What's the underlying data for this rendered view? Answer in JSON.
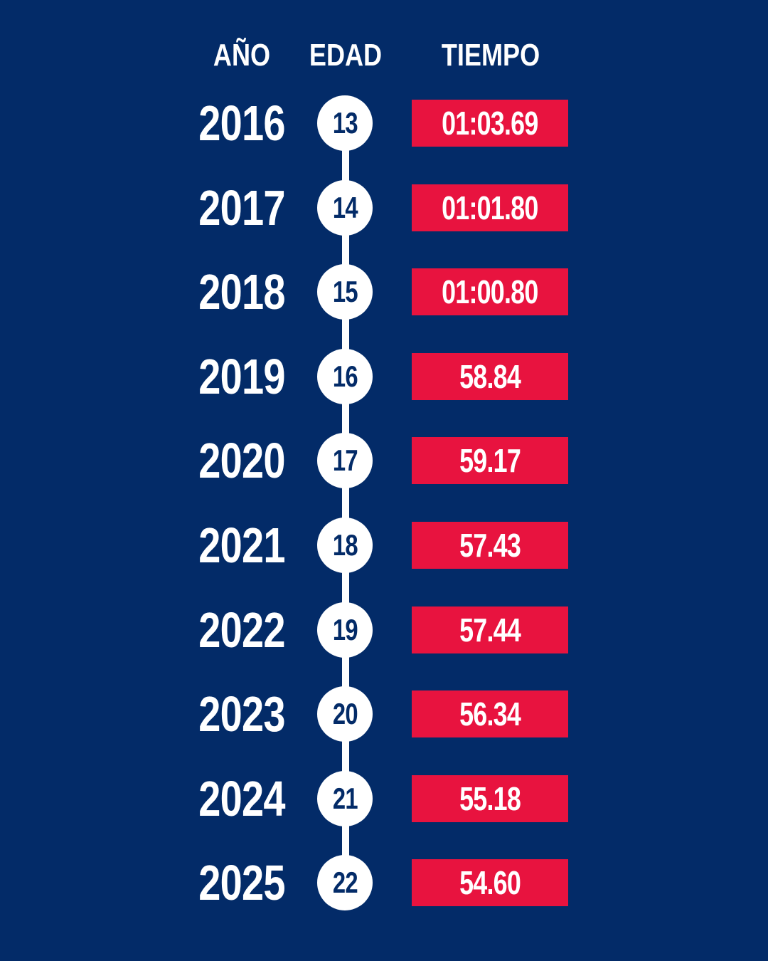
{
  "headers": {
    "year": "AÑO",
    "age": "EDAD",
    "time": "TIEMPO"
  },
  "colors": {
    "background": "#032B68",
    "time_box": "#E8133F",
    "text": "#ffffff"
  },
  "rows": [
    {
      "year": "2016",
      "age": "13",
      "time": "01:03.69"
    },
    {
      "year": "2017",
      "age": "14",
      "time": "01:01.80"
    },
    {
      "year": "2018",
      "age": "15",
      "time": "01:00.80"
    },
    {
      "year": "2019",
      "age": "16",
      "time": "58.84"
    },
    {
      "year": "2020",
      "age": "17",
      "time": "59.17"
    },
    {
      "year": "2021",
      "age": "18",
      "time": "57.43"
    },
    {
      "year": "2022",
      "age": "19",
      "time": "57.44"
    },
    {
      "year": "2023",
      "age": "20",
      "time": "56.34"
    },
    {
      "year": "2024",
      "age": "21",
      "time": "55.18"
    },
    {
      "year": "2025",
      "age": "22",
      "time": "54.60"
    }
  ]
}
